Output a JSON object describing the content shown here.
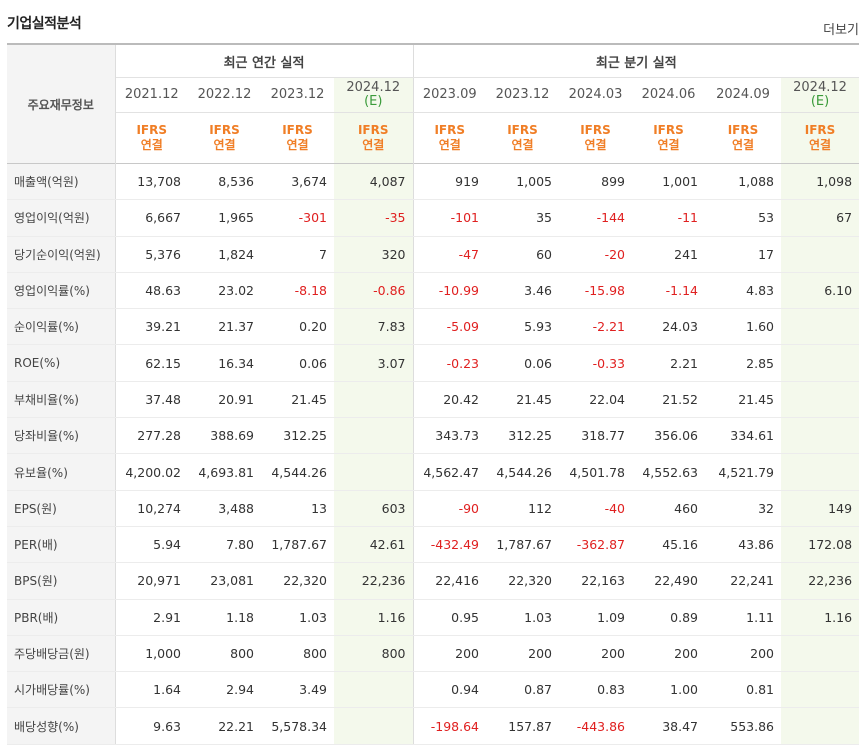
{
  "section_title": "기업실적분석",
  "more_link": "더보기",
  "row_header_label": "주요재무정보",
  "groups": {
    "annual": "최근 연간 실적",
    "quarterly": "최근 분기 실적"
  },
  "annual_periods": [
    {
      "date": "2021.12",
      "est": "",
      "ifrs1": "IFRS",
      "ifrs2": "연결"
    },
    {
      "date": "2022.12",
      "est": "",
      "ifrs1": "IFRS",
      "ifrs2": "연결"
    },
    {
      "date": "2023.12",
      "est": "",
      "ifrs1": "IFRS",
      "ifrs2": "연결"
    },
    {
      "date": "2024.12",
      "est": "(E)",
      "ifrs1": "IFRS",
      "ifrs2": "연결"
    }
  ],
  "quarter_periods": [
    {
      "date": "2023.09",
      "est": "",
      "ifrs1": "IFRS",
      "ifrs2": "연결"
    },
    {
      "date": "2023.12",
      "est": "",
      "ifrs1": "IFRS",
      "ifrs2": "연결"
    },
    {
      "date": "2024.03",
      "est": "",
      "ifrs1": "IFRS",
      "ifrs2": "연결"
    },
    {
      "date": "2024.06",
      "est": "",
      "ifrs1": "IFRS",
      "ifrs2": "연결"
    },
    {
      "date": "2024.09",
      "est": "",
      "ifrs1": "IFRS",
      "ifrs2": "연결"
    },
    {
      "date": "2024.12",
      "est": "(E)",
      "ifrs1": "IFRS",
      "ifrs2": "연결"
    }
  ],
  "rows": [
    {
      "label": "매출액(억원)",
      "values": [
        "13,708",
        "8,536",
        "3,674",
        "4,087",
        "919",
        "1,005",
        "899",
        "1,001",
        "1,088",
        "1,098"
      ]
    },
    {
      "label": "영업이익(억원)",
      "values": [
        "6,667",
        "1,965",
        "-301",
        "-35",
        "-101",
        "35",
        "-144",
        "-11",
        "53",
        "67"
      ]
    },
    {
      "label": "당기순이익(억원)",
      "values": [
        "5,376",
        "1,824",
        "7",
        "320",
        "-47",
        "60",
        "-20",
        "241",
        "17",
        ""
      ]
    },
    {
      "label": "영업이익률(%)",
      "values": [
        "48.63",
        "23.02",
        "-8.18",
        "-0.86",
        "-10.99",
        "3.46",
        "-15.98",
        "-1.14",
        "4.83",
        "6.10"
      ]
    },
    {
      "label": "순이익률(%)",
      "values": [
        "39.21",
        "21.37",
        "0.20",
        "7.83",
        "-5.09",
        "5.93",
        "-2.21",
        "24.03",
        "1.60",
        ""
      ]
    },
    {
      "label": "ROE(%)",
      "values": [
        "62.15",
        "16.34",
        "0.06",
        "3.07",
        "-0.23",
        "0.06",
        "-0.33",
        "2.21",
        "2.85",
        ""
      ]
    },
    {
      "label": "부채비율(%)",
      "values": [
        "37.48",
        "20.91",
        "21.45",
        "",
        "20.42",
        "21.45",
        "22.04",
        "21.52",
        "21.45",
        ""
      ]
    },
    {
      "label": "당좌비율(%)",
      "values": [
        "277.28",
        "388.69",
        "312.25",
        "",
        "343.73",
        "312.25",
        "318.77",
        "356.06",
        "334.61",
        ""
      ]
    },
    {
      "label": "유보율(%)",
      "values": [
        "4,200.02",
        "4,693.81",
        "4,544.26",
        "",
        "4,562.47",
        "4,544.26",
        "4,501.78",
        "4,552.63",
        "4,521.79",
        ""
      ]
    },
    {
      "label": "EPS(원)",
      "values": [
        "10,274",
        "3,488",
        "13",
        "603",
        "-90",
        "112",
        "-40",
        "460",
        "32",
        "149"
      ]
    },
    {
      "label": "PER(배)",
      "values": [
        "5.94",
        "7.80",
        "1,787.67",
        "42.61",
        "-432.49",
        "1,787.67",
        "-362.87",
        "45.16",
        "43.86",
        "172.08"
      ]
    },
    {
      "label": "BPS(원)",
      "values": [
        "20,971",
        "23,081",
        "22,320",
        "22,236",
        "22,416",
        "22,320",
        "22,163",
        "22,490",
        "22,241",
        "22,236"
      ]
    },
    {
      "label": "PBR(배)",
      "values": [
        "2.91",
        "1.18",
        "1.03",
        "1.16",
        "0.95",
        "1.03",
        "1.09",
        "0.89",
        "1.11",
        "1.16"
      ]
    },
    {
      "label": "주당배당금(원)",
      "values": [
        "1,000",
        "800",
        "800",
        "800",
        "200",
        "200",
        "200",
        "200",
        "200",
        ""
      ]
    },
    {
      "label": "시가배당률(%)",
      "values": [
        "1.64",
        "2.94",
        "3.49",
        "",
        "0.94",
        "0.87",
        "0.83",
        "1.00",
        "0.81",
        ""
      ]
    },
    {
      "label": "배당성향(%)",
      "values": [
        "9.63",
        "22.21",
        "5,578.34",
        "",
        "-198.64",
        "157.87",
        "-443.86",
        "38.47",
        "553.86",
        ""
      ]
    }
  ],
  "group_break_rows": [
    3,
    6,
    9,
    13
  ]
}
